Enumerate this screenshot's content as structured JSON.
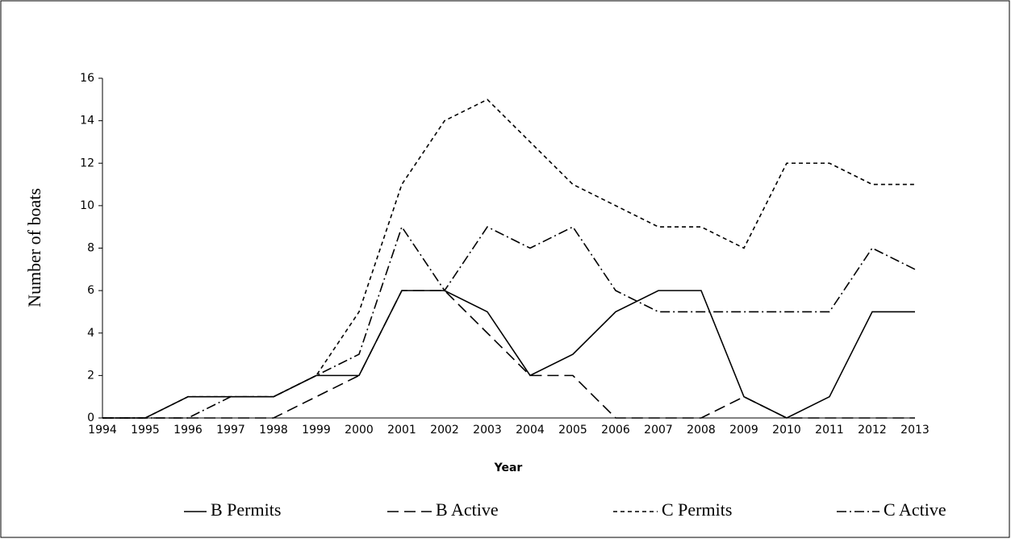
{
  "chart_data": {
    "type": "line",
    "x_label": "Year",
    "y_label": "Number of boats",
    "categories": [
      "1994",
      "1995",
      "1996",
      "1997",
      "1998",
      "1999",
      "2000",
      "2001",
      "2002",
      "2003",
      "2004",
      "2005",
      "2006",
      "2007",
      "2008",
      "2009",
      "2010",
      "2011",
      "2012",
      "2013"
    ],
    "series": [
      {
        "name": "B Permits",
        "color": "#000000",
        "style": "solid",
        "values": [
          0,
          0,
          1,
          1,
          1,
          2,
          2,
          6,
          6,
          5,
          2,
          3,
          5,
          6,
          6,
          1,
          0,
          1,
          5,
          5
        ]
      },
      {
        "name": "B Active",
        "color": "#000000",
        "style": "long-dash",
        "values": [
          0,
          0,
          0,
          0,
          0,
          1,
          2,
          6,
          6,
          4,
          2,
          2,
          0,
          0,
          0,
          1,
          0,
          0,
          0,
          0
        ]
      },
      {
        "name": "C Permits",
        "color": "#000000",
        "style": "short-dash",
        "values": [
          0,
          0,
          1,
          1,
          1,
          2,
          5,
          11,
          14,
          15,
          13,
          11,
          10,
          9,
          9,
          8,
          12,
          12,
          11,
          11
        ]
      },
      {
        "name": "C Active",
        "color": "#000000",
        "style": "dash-dot",
        "values": [
          0,
          0,
          0,
          1,
          1,
          2,
          3,
          9,
          6,
          9,
          8,
          9,
          6,
          5,
          5,
          5,
          5,
          5,
          8,
          7
        ]
      }
    ],
    "ylim": [
      0,
      16
    ],
    "yticks": [
      0,
      2,
      4,
      6,
      8,
      10,
      12,
      14,
      16
    ],
    "grid": false,
    "legend": "bottom"
  }
}
